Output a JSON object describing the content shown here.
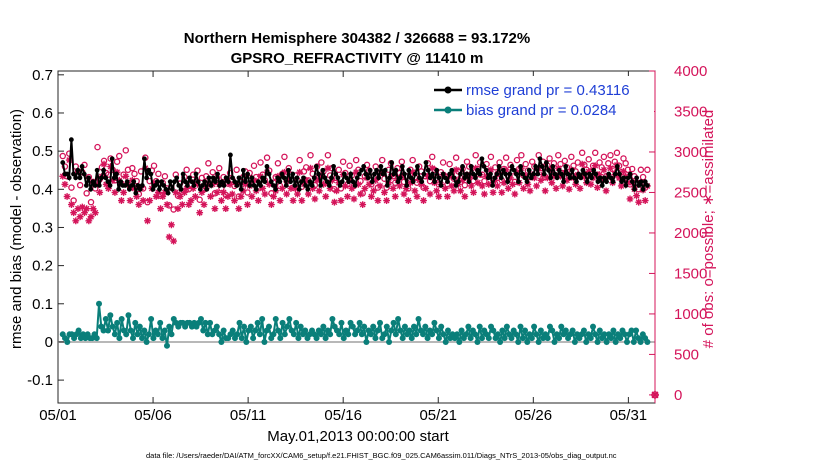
{
  "chart_data": {
    "type": "line",
    "title_line1": "Northern Hemisphere 304382 / 326688 = 93.172%",
    "title_line2": "GPSRO_REFRACTIVITY @ 11410 m",
    "xlabel": "May.01,2013 00:00:00 start",
    "ylabel_left": "rmse and bias (model - observation)",
    "ylabel_right": "# of obs: o=possible; ∗=assimilated",
    "footnote": "data file: /Users/raeder/DAI/ATM_forcXX/CAM6_setup/f.e21.FHIST_BGC.f09_025.CAM6assim.011/Diags_NTrS_2013-05/obs_diag_output.nc",
    "xlim": [
      0,
      31.4
    ],
    "ylim_left": [
      -0.16,
      0.71
    ],
    "ylim_right": [
      -100,
      4000
    ],
    "x_tick_labels": [
      "05/01",
      "05/06",
      "05/11",
      "05/16",
      "05/21",
      "05/26",
      "05/31"
    ],
    "left_tick_labels": [
      "-0.1",
      "0",
      "0.1",
      "0.2",
      "0.3",
      "0.4",
      "0.5",
      "0.6",
      "0.7"
    ],
    "right_tick_labels": [
      "0",
      "500",
      "1000",
      "1500",
      "2000",
      "2500",
      "3000",
      "3500",
      "4000"
    ],
    "legend": [
      "rmse grand pr = 0.43116",
      "bias grand pr = 0.0284"
    ],
    "colors": {
      "rmse": "#000000",
      "bias": "#0a7f7a",
      "obs": "#d4145a",
      "zero_line": "#b8b8b8"
    },
    "series": [
      {
        "name": "rmse",
        "axis": "left",
        "values": [
          0.47,
          0.44,
          0.44,
          0.43,
          0.53,
          0.44,
          0.43,
          0.45,
          0.43,
          0.46,
          0.44,
          0.41,
          0.43,
          0.4,
          0.42,
          0.41,
          0.45,
          0.41,
          0.43,
          0.45,
          0.43,
          0.42,
          0.41,
          0.48,
          0.43,
          0.44,
          0.4,
          0.42,
          0.41,
          0.41,
          0.42,
          0.4,
          0.41,
          0.42,
          0.39,
          0.41,
          0.4,
          0.41,
          0.48,
          0.43,
          0.45,
          0.44,
          0.4,
          0.41,
          0.42,
          0.4,
          0.42,
          0.41,
          0.4,
          0.39,
          0.42,
          0.4,
          0.42,
          0.43,
          0.41,
          0.4,
          0.44,
          0.42,
          0.41,
          0.43,
          0.42,
          0.41,
          0.44,
          0.42,
          0.4,
          0.41,
          0.42,
          0.4,
          0.43,
          0.41,
          0.43,
          0.42,
          0.44,
          0.41,
          0.42,
          0.41,
          0.43,
          0.42,
          0.49,
          0.43,
          0.42,
          0.41,
          0.43,
          0.4,
          0.45,
          0.42,
          0.44,
          0.41,
          0.43,
          0.41,
          0.4,
          0.42,
          0.41,
          0.43,
          0.42,
          0.46,
          0.44,
          0.42,
          0.41,
          0.4,
          0.43,
          0.42,
          0.44,
          0.43,
          0.41,
          0.45,
          0.42,
          0.44,
          0.41,
          0.43,
          0.4,
          0.42,
          0.43,
          0.41,
          0.4,
          0.42,
          0.41,
          0.43,
          0.46,
          0.44,
          0.41,
          0.45,
          0.43,
          0.42,
          0.41,
          0.43,
          0.46,
          0.44,
          0.43,
          0.41,
          0.42,
          0.44,
          0.43,
          0.42,
          0.44,
          0.42,
          0.41,
          0.43,
          0.44,
          0.45,
          0.46,
          0.44,
          0.43,
          0.45,
          0.42,
          0.44,
          0.45,
          0.43,
          0.46,
          0.44,
          0.45,
          0.41,
          0.43,
          0.47,
          0.44,
          0.45,
          0.42,
          0.43,
          0.46,
          0.44,
          0.41,
          0.45,
          0.43,
          0.42,
          0.44,
          0.46,
          0.43,
          0.42,
          0.44,
          0.47,
          0.45,
          0.43,
          0.44,
          0.42,
          0.45,
          0.43,
          0.41,
          0.44,
          0.43,
          0.42,
          0.44,
          0.45,
          0.43,
          0.41,
          0.42,
          0.44,
          0.46,
          0.43,
          0.44,
          0.42,
          0.46,
          0.44,
          0.43,
          0.45,
          0.44,
          0.48,
          0.46,
          0.45,
          0.43,
          0.44,
          0.41,
          0.43,
          0.44,
          0.46,
          0.43,
          0.45,
          0.44,
          0.42,
          0.44,
          0.46,
          0.45,
          0.44,
          0.42,
          0.46,
          0.44,
          0.43,
          0.42,
          0.45,
          0.43,
          0.44,
          0.46,
          0.44,
          0.48,
          0.46,
          0.44,
          0.47,
          0.45,
          0.43,
          0.46,
          0.44,
          0.43,
          0.45,
          0.44,
          0.42,
          0.46,
          0.44,
          0.43,
          0.45,
          0.43,
          0.42,
          0.44,
          0.43,
          0.45,
          0.44,
          0.42,
          0.44,
          0.43,
          0.45,
          0.44,
          0.42,
          0.43,
          0.41,
          0.43,
          0.42,
          0.44,
          0.43,
          0.42,
          0.44,
          0.46,
          0.44,
          0.42,
          0.43,
          0.41,
          0.43,
          0.44,
          0.42,
          0.4,
          0.43,
          0.41,
          0.42,
          0.4,
          0.42,
          0.41
        ]
      },
      {
        "name": "bias",
        "axis": "left",
        "values": [
          0.02,
          0.01,
          0.0,
          0.02,
          0.02,
          0.01,
          0.02,
          0.03,
          0.01,
          0.02,
          0.01,
          0.02,
          0.01,
          0.01,
          0.02,
          0.01,
          0.1,
          0.04,
          0.03,
          0.06,
          0.03,
          0.07,
          0.04,
          0.02,
          0.05,
          0.01,
          0.06,
          0.03,
          0.02,
          0.07,
          0.03,
          0.01,
          0.05,
          0.02,
          0.04,
          0.01,
          0.03,
          0.0,
          0.02,
          0.06,
          0.01,
          0.03,
          0.02,
          0.05,
          0.01,
          0.03,
          -0.01,
          0.04,
          0.02,
          0.06,
          0.05,
          0.04,
          0.05,
          0.05,
          0.04,
          0.05,
          0.05,
          0.04,
          0.05,
          0.04,
          0.05,
          0.06,
          0.03,
          0.05,
          0.02,
          0.05,
          0.02,
          0.03,
          0.04,
          0.02,
          0.0,
          0.03,
          0.01,
          0.01,
          0.02,
          0.03,
          0.01,
          0.02,
          0.05,
          0.01,
          0.04,
          0.0,
          0.03,
          0.04,
          0.01,
          0.03,
          0.05,
          0.02,
          0.06,
          0.0,
          0.03,
          0.04,
          0.01,
          0.02,
          0.06,
          0.03,
          0.01,
          0.05,
          0.02,
          0.04,
          0.06,
          0.03,
          0.02,
          0.05,
          0.01,
          0.04,
          0.02,
          0.03,
          0.01,
          0.02,
          0.03,
          0.02,
          0.01,
          0.03,
          0.02,
          0.04,
          0.01,
          0.03,
          0.02,
          0.06,
          0.04,
          0.03,
          0.02,
          0.05,
          0.01,
          0.03,
          0.02,
          0.05,
          0.04,
          0.02,
          0.03,
          0.05,
          0.02,
          0.04,
          0.0,
          0.03,
          0.02,
          0.04,
          0.01,
          0.03,
          0.05,
          0.01,
          0.02,
          0.04,
          0.0,
          0.03,
          0.05,
          0.02,
          0.06,
          0.03,
          0.01,
          0.04,
          0.02,
          0.03,
          0.01,
          0.04,
          0.02,
          0.06,
          0.03,
          0.02,
          0.04,
          0.01,
          0.03,
          0.02,
          0.05,
          0.03,
          0.01,
          0.04,
          0.02,
          0.0,
          0.03,
          0.01,
          0.02,
          0.01,
          0.02,
          0.0,
          0.03,
          0.01,
          0.02,
          0.04,
          0.01,
          0.03,
          0.02,
          0.0,
          0.04,
          0.01,
          0.03,
          0.02,
          0.01,
          0.04,
          0.03,
          0.01,
          0.02,
          0.0,
          0.03,
          0.01,
          0.04,
          0.02,
          0.01,
          0.03,
          0.02,
          0.0,
          0.04,
          0.01,
          0.03,
          0.0,
          0.02,
          0.01,
          0.04,
          0.02,
          0.0,
          0.03,
          0.01,
          0.02,
          0.01,
          0.04,
          0.03,
          0.0,
          0.02,
          0.01,
          0.04,
          0.02,
          0.03,
          0.01,
          0.02,
          0.03,
          0.0,
          0.02,
          0.01,
          0.02,
          0.03,
          0.0,
          0.02,
          0.01,
          0.04,
          0.02,
          0.0,
          0.03,
          0.01,
          0.02,
          0.0,
          0.02,
          0.01,
          0.03,
          0.0,
          0.02,
          0.01,
          0.03,
          0.02,
          0.0,
          0.02,
          0.03,
          0.0,
          0.03,
          0.01,
          0.0,
          0.02,
          0.01,
          0.0
        ]
      },
      {
        "name": "obs_possible",
        "axis": "right",
        "marker": "o",
        "values": [
          2950,
          2820,
          2700,
          2980,
          2560,
          2400,
          2820,
          2760,
          2590,
          2750,
          2840,
          2490,
          2690,
          2380,
          2630,
          2550,
          3060,
          2660,
          2810,
          2890,
          2740,
          2720,
          2920,
          2780,
          2650,
          2880,
          2950,
          2610,
          2720,
          3020,
          2780,
          2560,
          2800,
          2730,
          2640,
          2480,
          2760,
          2550,
          2930,
          2380,
          2640,
          2770,
          2830,
          2640,
          2730,
          2460,
          2620,
          2700,
          2550,
          2340,
          2560,
          2290,
          2720,
          2460,
          2610,
          2510,
          2690,
          2780,
          2540,
          2590,
          2720,
          2630,
          2770,
          2410,
          2680,
          2540,
          2700,
          2860,
          2600,
          2750,
          2490,
          2680,
          2800,
          2550,
          2690,
          2470,
          2610,
          2740,
          2660,
          2580,
          2780,
          2450,
          2630,
          2690,
          2760,
          2500,
          2740,
          2620,
          2830,
          2690,
          2560,
          2870,
          2720,
          2650,
          2930,
          2770,
          2490,
          2620,
          2690,
          2860,
          2580,
          2730,
          2940,
          2640,
          2800,
          2720,
          2560,
          2710,
          2650,
          2900,
          2570,
          2760,
          2810,
          2650,
          2960,
          2730,
          2590,
          2820,
          2700,
          2870,
          2760,
          2620,
          2960,
          2710,
          2800,
          2540,
          2680,
          2780,
          2550,
          2880,
          2740,
          2600,
          2830,
          2710,
          2580,
          2900,
          2780,
          2640,
          2490,
          2700,
          2840,
          2770,
          2600,
          2690,
          2820,
          2560,
          2740,
          2900,
          2670,
          2560,
          2780,
          2860,
          2700,
          2620,
          2800,
          2740,
          2880,
          2630,
          2700,
          2550,
          2780,
          2900,
          2690,
          2620,
          2820,
          2760,
          2560,
          2700,
          2860,
          2640,
          2940,
          2780,
          2680,
          2600,
          2750,
          2870,
          2700,
          2600,
          2850,
          2730,
          2670,
          2930,
          2760,
          2680,
          2790,
          2590,
          2880,
          2820,
          2720,
          2640,
          2960,
          2790,
          2870,
          2720,
          2640,
          2850,
          2760,
          2940,
          2660,
          2810,
          2730,
          2870,
          2650,
          2790,
          2930,
          2700,
          2840,
          2760,
          2630,
          2900,
          2790,
          2960,
          2710,
          2850,
          2770,
          2690,
          2880,
          2820,
          2740,
          2960,
          2800,
          2880,
          2690,
          2830,
          2920,
          2780,
          2860,
          2710,
          2960,
          2850,
          2740,
          2890,
          2810,
          2700,
          2940,
          2830,
          2760,
          2870,
          2700,
          2990,
          2840,
          2780,
          2910,
          2760,
          2830,
          2990,
          2720,
          2870,
          2810,
          2940,
          2700,
          2860,
          2960,
          2790,
          2880,
          2990,
          2830,
          2750,
          2920,
          2860,
          2780,
          2600,
          2790,
          2700,
          2620,
          2540,
          2780,
          2690,
          2560,
          2780
        ]
      },
      {
        "name": "obs_assimilated",
        "axis": "right",
        "marker": "*",
        "values": [
          2700,
          2600,
          2450,
          2900,
          2350,
          2250,
          2150,
          2300,
          2200,
          2320,
          2250,
          2300,
          2150,
          2200,
          2300,
          2250,
          2600,
          2500,
          2700,
          2850,
          2600,
          2550,
          2820,
          2650,
          2500,
          2750,
          2650,
          2400,
          2500,
          2700,
          2600,
          2400,
          2650,
          2550,
          2450,
          2350,
          2560,
          2400,
          2800,
          2150,
          2400,
          2550,
          2620,
          2450,
          2500,
          2300,
          2450,
          2500,
          2350,
          1950,
          2100,
          1900,
          2500,
          2300,
          2450,
          2350,
          2500,
          2550,
          2350,
          2400,
          2550,
          2450,
          2600,
          2250,
          2500,
          2350,
          2550,
          2620,
          2450,
          2600,
          2300,
          2500,
          2600,
          2400,
          2500,
          2300,
          2450,
          2600,
          2480,
          2400,
          2600,
          2300,
          2450,
          2520,
          2600,
          2350,
          2580,
          2450,
          2650,
          2520,
          2400,
          2700,
          2550,
          2480,
          2750,
          2600,
          2350,
          2450,
          2520,
          2700,
          2400,
          2550,
          2750,
          2480,
          2650,
          2550,
          2400,
          2550,
          2480,
          2750,
          2400,
          2600,
          2650,
          2480,
          2800,
          2550,
          2420,
          2650,
          2520,
          2700,
          2600,
          2450,
          2800,
          2550,
          2650,
          2380,
          2520,
          2620,
          2400,
          2720,
          2580,
          2450,
          2650,
          2550,
          2420,
          2750,
          2600,
          2480,
          2350,
          2550,
          2680,
          2600,
          2450,
          2520,
          2650,
          2400,
          2580,
          2750,
          2500,
          2400,
          2620,
          2700,
          2550,
          2450,
          2650,
          2580,
          2700,
          2480,
          2550,
          2400,
          2620,
          2750,
          2520,
          2450,
          2650,
          2600,
          2400,
          2550,
          2700,
          2480,
          2800,
          2620,
          2520,
          2450,
          2600,
          2720,
          2550,
          2450,
          2700,
          2580,
          2520,
          2780,
          2600,
          2520,
          2650,
          2450,
          2720,
          2680,
          2580,
          2500,
          2800,
          2620,
          2720,
          2580,
          2480,
          2700,
          2600,
          2780,
          2500,
          2650,
          2580,
          2720,
          2500,
          2620,
          2780,
          2550,
          2680,
          2600,
          2480,
          2750,
          2620,
          2800,
          2550,
          2700,
          2600,
          2520,
          2720,
          2680,
          2580,
          2800,
          2650,
          2720,
          2520,
          2680,
          2780,
          2620,
          2700,
          2550,
          2800,
          2700,
          2580,
          2740,
          2650,
          2540,
          2780,
          2680,
          2600,
          2720,
          2550,
          2850,
          2690,
          2620,
          2760,
          2600,
          2680,
          2830,
          2560,
          2720,
          2650,
          2780,
          2520,
          2700,
          2800,
          2620,
          2720,
          2840,
          2680,
          2580,
          2760,
          2700,
          2620,
          2420,
          2620,
          2540,
          2460,
          2380,
          2620,
          2530,
          2400,
          2580
        ]
      }
    ],
    "outlier": {
      "x": 31.4,
      "y_right": 0
    }
  }
}
